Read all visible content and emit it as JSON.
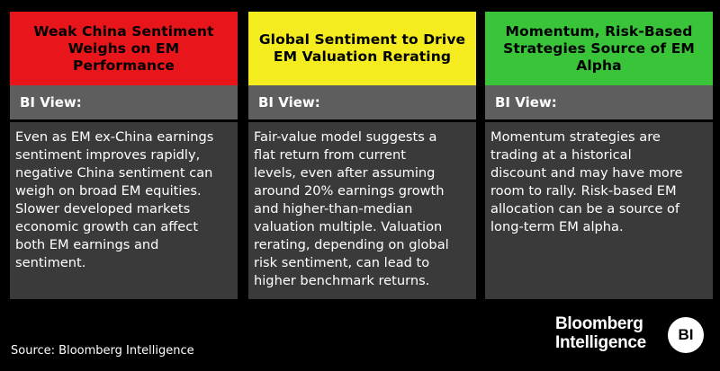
{
  "panels": [
    {
      "header_color": "#e8161b",
      "title_line1": "Weak China Sentiment",
      "title_line2": "Weighs on EM Performance",
      "view_label": "BI View:",
      "body_lines": [
        "Even as EM ex-China earnings",
        "sentiment improves rapidly,",
        "negative China sentiment can",
        "weigh on broad EM equities.",
        "Slower developed markets",
        "economic growth can affect",
        "both EM earnings and",
        "sentiment."
      ]
    },
    {
      "header_color": "#f4ec1f",
      "title_line1": "Global Sentiment to Drive",
      "title_line2": "EM Valuation Rerating",
      "view_label": "BI View:",
      "body_lines": [
        "Fair-value model suggests a",
        "flat return from current",
        "levels, even after assuming",
        "around 20% earnings growth",
        "and higher-than-median",
        "valuation multiple. Valuation",
        "rerating, depending on global",
        "risk sentiment, can lead to",
        "higher benchmark returns."
      ]
    },
    {
      "header_color": "#39c43a",
      "title_line1": "Momentum, Risk-Based",
      "title_line2": "Strategies Source of EM",
      "title_line3": "Alpha",
      "view_label": "BI View:",
      "body_lines": [
        "Momentum strategies are",
        "trading at a historical",
        "discount and may have more",
        "room to rally. Risk-based EM",
        "allocation can be a source of",
        "long-term EM alpha."
      ]
    }
  ],
  "footer": {
    "source": "Source: Bloomberg Intelligence",
    "logo_line1": "Bloomberg",
    "logo_line2": "Intelligence",
    "logo_badge": "BI"
  }
}
